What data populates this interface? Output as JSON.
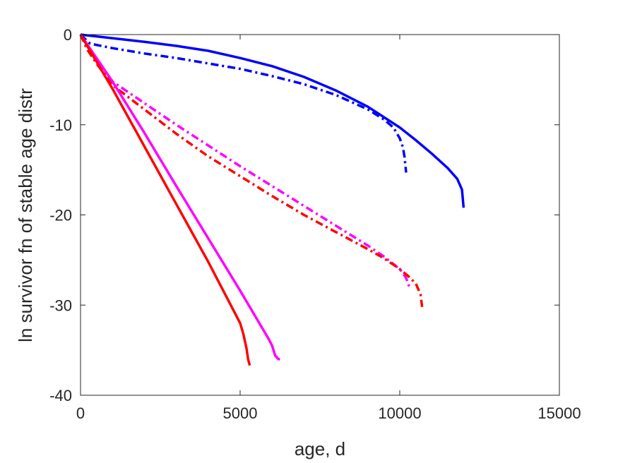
{
  "chart_data": {
    "type": "line",
    "xlabel": "age, d",
    "ylabel": "ln survivor fn of stable age distr",
    "xlim": [
      0,
      15000
    ],
    "ylim": [
      -40,
      0
    ],
    "xticks": [
      0,
      5000,
      10000,
      15000
    ],
    "yticks": [
      0,
      -10,
      -20,
      -30,
      -40
    ],
    "xtick_labels": [
      "0",
      "5000",
      "10000",
      "15000"
    ],
    "ytick_labels": [
      "0",
      "-10",
      "-20",
      "-30",
      "-40"
    ],
    "grid": false,
    "box": true,
    "series": [
      {
        "color": "#0000ff",
        "style": "solid",
        "x": [
          0,
          1000,
          2000,
          3000,
          4000,
          5000,
          6000,
          7000,
          8000,
          9000,
          10000,
          10500,
          11000,
          11500,
          11800,
          11950,
          12000
        ],
        "y": [
          0,
          -0.4,
          -0.8,
          -1.25,
          -1.8,
          -2.6,
          -3.5,
          -4.7,
          -6.2,
          -8.0,
          -10.3,
          -11.7,
          -13.2,
          -14.8,
          -16.0,
          -17.2,
          -19.2
        ]
      },
      {
        "color": "#0000ff",
        "style": "dashdot",
        "x": [
          0,
          300,
          1000,
          2000,
          3000,
          4000,
          5000,
          6000,
          7000,
          8000,
          9000,
          9500,
          9800,
          10000,
          10100,
          10150,
          10200
        ],
        "y": [
          0,
          -1.0,
          -1.5,
          -2.1,
          -2.6,
          -3.2,
          -3.8,
          -4.6,
          -5.5,
          -6.7,
          -8.3,
          -9.4,
          -10.3,
          -11.5,
          -12.5,
          -13.6,
          -15.3
        ]
      },
      {
        "color": "#ff00ff",
        "style": "dashdot",
        "x": [
          0,
          200,
          500,
          1000,
          2000,
          3000,
          4000,
          5000,
          6000,
          7000,
          8000,
          9000,
          9500,
          10000,
          10200,
          10300
        ],
        "y": [
          0,
          -1.5,
          -3.0,
          -5.2,
          -7.6,
          -10.0,
          -12.3,
          -14.6,
          -16.8,
          -19.0,
          -21.2,
          -23.4,
          -24.6,
          -26.0,
          -27.0,
          -28.0
        ]
      },
      {
        "color": "#ff0000",
        "style": "dashdot",
        "x": [
          0,
          200,
          500,
          1000,
          2000,
          3000,
          4000,
          5000,
          6000,
          7000,
          8000,
          9000,
          9500,
          10000,
          10300,
          10500,
          10650,
          10700
        ],
        "y": [
          0,
          -1.6,
          -3.2,
          -5.6,
          -8.3,
          -11.0,
          -13.5,
          -15.7,
          -17.9,
          -20.0,
          -21.9,
          -23.8,
          -24.8,
          -26.0,
          -26.9,
          -27.6,
          -28.8,
          -30.2
        ]
      },
      {
        "color": "#ff00ff",
        "style": "solid",
        "x": [
          0,
          1000,
          2000,
          3000,
          4000,
          5000,
          5500,
          5900,
          6000,
          6100,
          6200,
          6250
        ],
        "y": [
          0,
          -5.2,
          -10.9,
          -16.8,
          -22.6,
          -28.4,
          -31.4,
          -33.8,
          -34.5,
          -35.6,
          -36.0,
          -36.0
        ]
      },
      {
        "color": "#ff0000",
        "style": "solid",
        "x": [
          0,
          1000,
          2000,
          3000,
          4000,
          5000,
          5100,
          5200,
          5250,
          5300
        ],
        "y": [
          0,
          -6.0,
          -12.4,
          -18.8,
          -25.2,
          -32.0,
          -33.2,
          -34.8,
          -36.0,
          -36.7
        ]
      }
    ]
  }
}
